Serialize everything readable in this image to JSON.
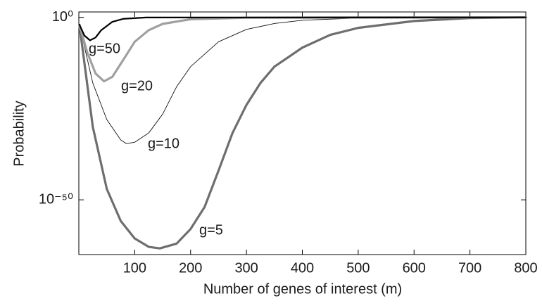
{
  "chart_data": {
    "type": "line",
    "x_label": "Number of genes of interest (m)",
    "y_label": "Probability",
    "xlim": [
      0,
      800
    ],
    "ylim": [
      1e-65,
      30
    ],
    "log_y": true,
    "xticks": [
      100,
      200,
      300,
      400,
      500,
      600,
      700,
      800
    ],
    "yticks": [
      {
        "value": 1,
        "label": "10⁰"
      },
      {
        "value": 1e-50,
        "label": "10⁻⁵⁰"
      }
    ],
    "series": [
      {
        "name": "g=5",
        "color": "#6e6e6e",
        "line_width": 3.2,
        "x": [
          1,
          25,
          50,
          75,
          100,
          125,
          145,
          175,
          200,
          225,
          250,
          275,
          300,
          325,
          350,
          400,
          450,
          500,
          600,
          700,
          800
        ],
        "values": [
          0.01,
          1e-30,
          1e-47,
          1.6e-56,
          2.5e-61,
          1.3e-63,
          5e-64,
          1e-62,
          1e-58,
          1e-52,
          1e-42,
          2e-32,
          1e-24,
          1e-18,
          3e-14,
          5e-09,
          1.6e-05,
          0.0013,
          0.1,
          0.63,
          1
        ]
      },
      {
        "name": "g=10",
        "color": "#111111",
        "line_width": 0.9,
        "x": [
          1,
          25,
          50,
          75,
          85,
          100,
          125,
          150,
          175,
          200,
          250,
          300,
          350,
          400,
          500,
          800
        ],
        "values": [
          0.01,
          1e-18,
          1e-28,
          2.5e-34,
          2.5e-35,
          6e-35,
          2e-32,
          3e-27,
          1e-19,
          3e-14,
          2e-07,
          0.0005,
          0.02,
          0.16,
          0.63,
          1
        ]
      },
      {
        "name": "g=20",
        "color": "#a0a0a0",
        "line_width": 3.2,
        "x": [
          1,
          15,
          30,
          45,
          60,
          80,
          100,
          125,
          150,
          200,
          300,
          800
        ],
        "values": [
          0.01,
          2.5e-10,
          4e-16,
          3e-18,
          5e-17,
          3e-12,
          2e-07,
          0.0003,
          0.016,
          0.3,
          0.8,
          1
        ]
      },
      {
        "name": "g=50",
        "color": "#000000",
        "line_width": 2.2,
        "x": [
          1,
          10,
          20,
          30,
          40,
          60,
          80,
          120,
          800
        ],
        "values": [
          0.01,
          1e-05,
          5e-07,
          3e-06,
          0.0003,
          0.06,
          0.4,
          0.9,
          1
        ]
      }
    ]
  }
}
